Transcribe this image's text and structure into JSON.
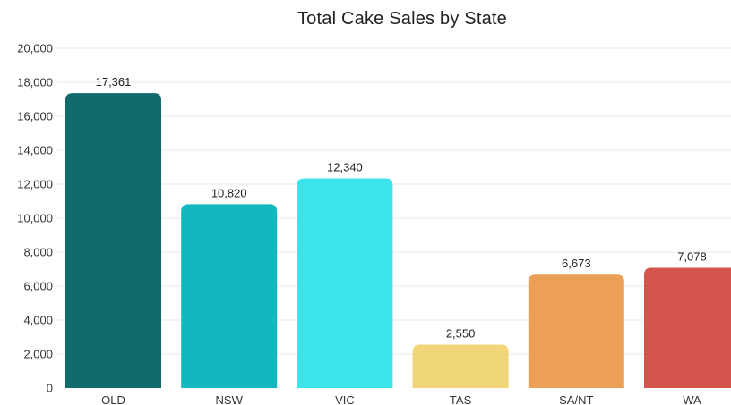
{
  "chart_data": {
    "type": "bar",
    "title": "Total Cake Sales by State",
    "xlabel": "",
    "ylabel": "",
    "categories": [
      "OLD",
      "NSW",
      "VIC",
      "TAS",
      "SA/NT",
      "WA"
    ],
    "values": [
      17361,
      10820,
      12340,
      2550,
      6673,
      7078
    ],
    "value_labels": [
      "17,361",
      "10,820",
      "12,340",
      "2,550",
      "6,673",
      "7,078"
    ],
    "colors": [
      "#116a6b",
      "#13b7bf",
      "#3ae4ea",
      "#f1d679",
      "#eb9f57",
      "#d6544e"
    ],
    "ylim": [
      0,
      20000
    ],
    "yticks": [
      0,
      2000,
      4000,
      6000,
      8000,
      10000,
      12000,
      14000,
      16000,
      18000,
      20000
    ],
    "ytick_labels": [
      "0",
      "2,000",
      "4,000",
      "6,000",
      "8,000",
      "10,000",
      "12,000",
      "14,000",
      "16,000",
      "18,000",
      "20,000"
    ],
    "grid": true,
    "legend": "none"
  }
}
